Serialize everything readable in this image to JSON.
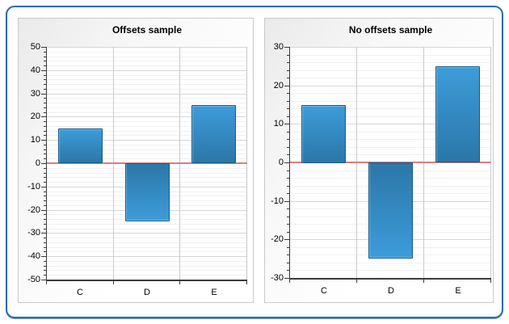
{
  "colors": {
    "bar_light": "#3d9cda",
    "bar_dark": "#2b77a8",
    "bar_border": "#1a5a84",
    "zero_line": "#d2827e",
    "grid_major": "#d6d6d6",
    "grid_minor": "#f0f0f0",
    "grid_vertical": "#c8c8c8",
    "axis_line": "#3a3a3a",
    "panel_border": "#c9c9c9",
    "label_color": "#000000",
    "title_color": "#000000",
    "frame_border": "#2b6cb0"
  },
  "chart_data": [
    {
      "type": "bar",
      "title": "Offsets sample",
      "categories": [
        "C",
        "D",
        "E"
      ],
      "values": [
        15,
        -25,
        25
      ],
      "ylim": [
        -50,
        50
      ],
      "ytick_step": 10,
      "ytick_minor_step": 2,
      "yticks": [
        50,
        40,
        30,
        20,
        10,
        0,
        -10,
        -20,
        -30,
        -40,
        -50
      ],
      "grid": true,
      "zero_line": true,
      "legend": "none"
    },
    {
      "type": "bar",
      "title": "No offsets sample",
      "categories": [
        "C",
        "D",
        "E"
      ],
      "values": [
        15,
        -25,
        25
      ],
      "ylim": [
        -30,
        30
      ],
      "ytick_step": 10,
      "ytick_minor_step": 2,
      "yticks": [
        30,
        20,
        10,
        0,
        -10,
        -20,
        -30
      ],
      "grid": true,
      "zero_line": true,
      "legend": "none"
    }
  ]
}
